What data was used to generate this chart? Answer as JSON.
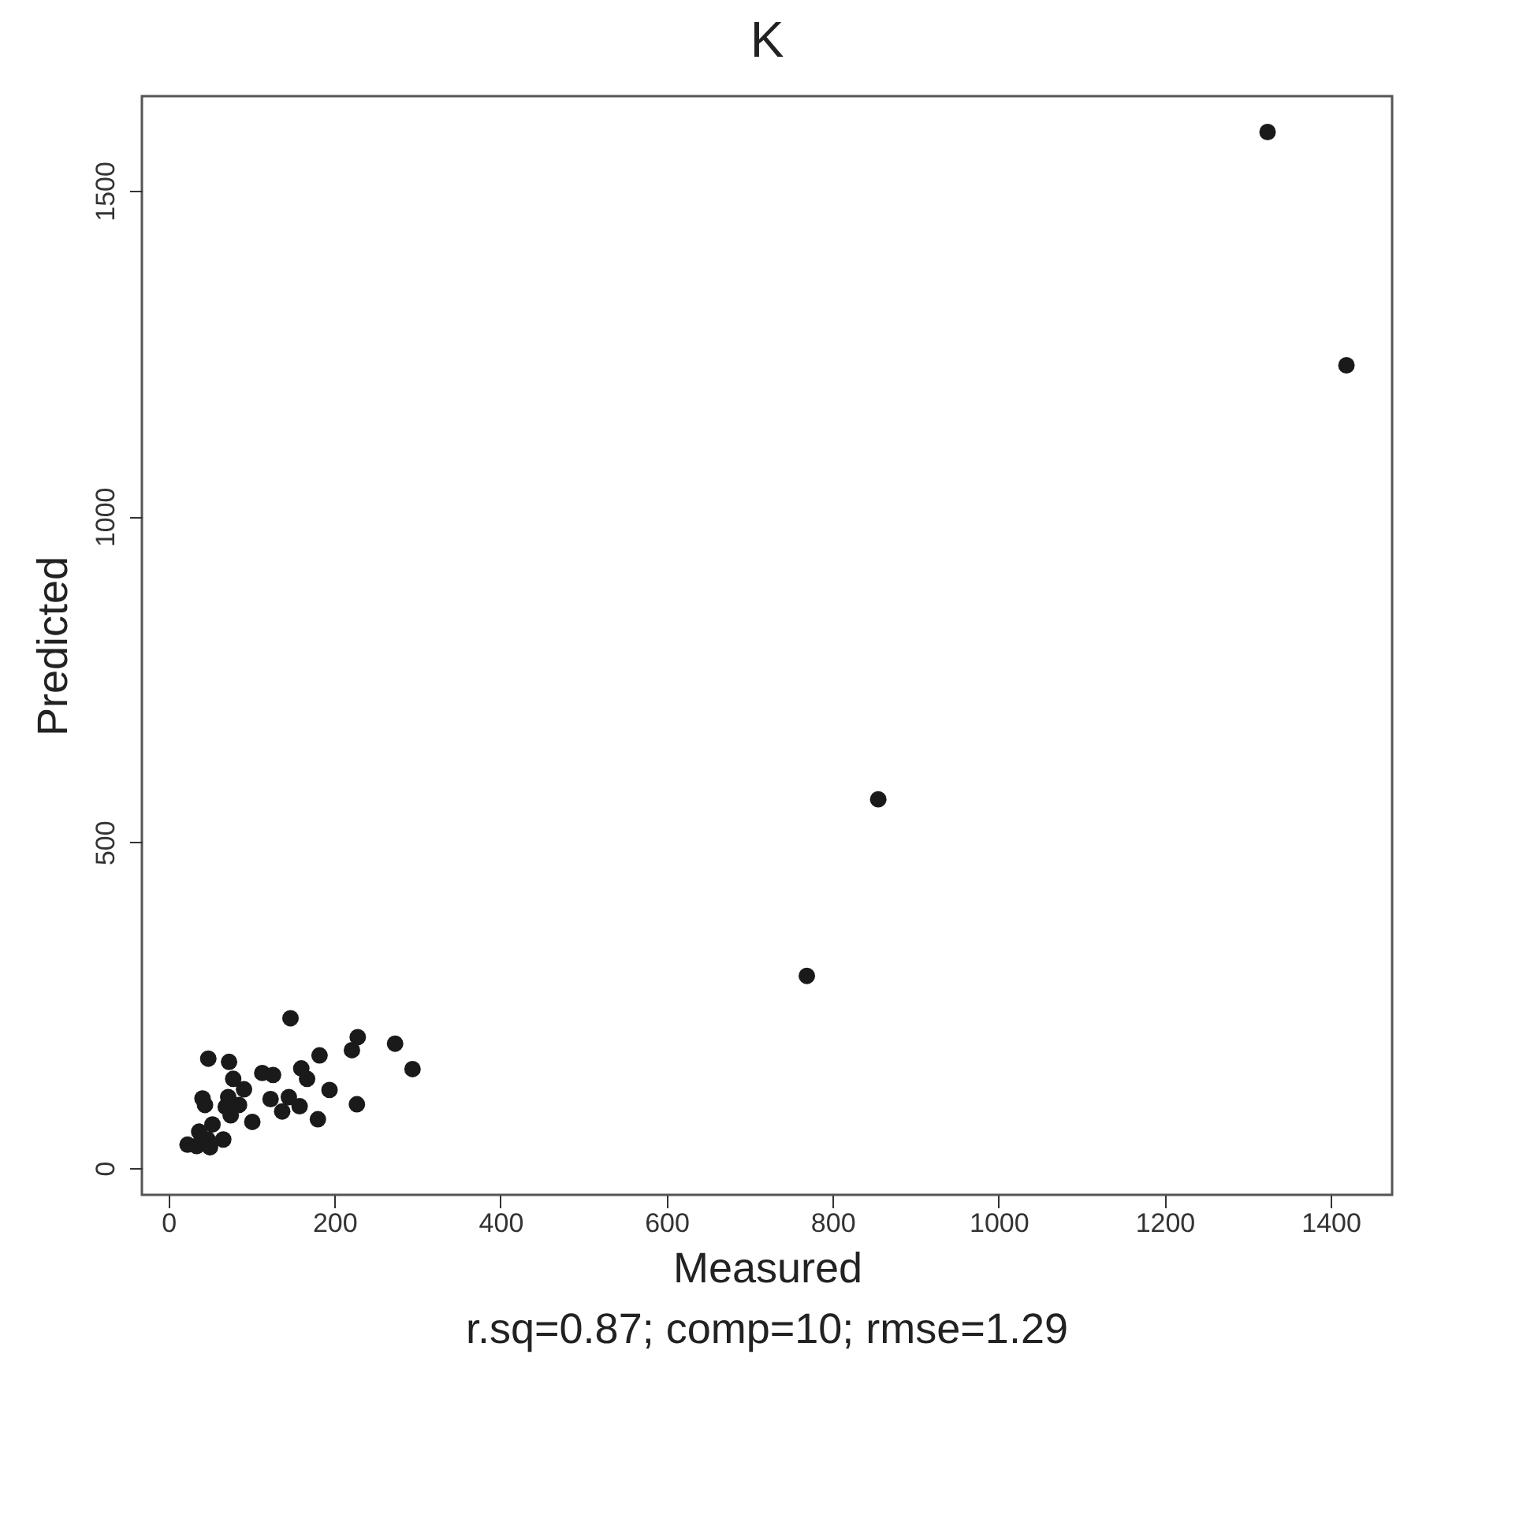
{
  "chart_data": {
    "type": "scatter",
    "title": "K",
    "xlabel": "Measured",
    "ylabel": "Predicted",
    "annotations": [
      "r.sq=0.87; comp=10; rmse=1.29"
    ],
    "x": [
      147,
      48,
      73,
      228,
      221,
      273,
      294,
      182,
      160,
      167,
      113,
      126,
      194,
      227,
      180,
      158,
      137,
      123,
      145,
      101,
      78,
      91,
      72,
      41,
      44,
      85,
      75,
      53,
      37,
      23,
      34,
      50,
      66,
      47,
      69,
      1324,
      1419,
      855,
      769
    ],
    "values": [
      230,
      168,
      163,
      201,
      181,
      191,
      152,
      173,
      153,
      137,
      146,
      143,
      120,
      98,
      75,
      95,
      87,
      106,
      109,
      71,
      137,
      121,
      109,
      107,
      97,
      97,
      81,
      67,
      56,
      36,
      34,
      32,
      44,
      44,
      94,
      1590,
      1232,
      566,
      295
    ],
    "color": "#1a1a1a",
    "marker": "circle",
    "grid": false,
    "xlim": [
      -32,
      1474
    ],
    "ylim": [
      -41,
      1645
    ],
    "xticks": [
      0,
      200,
      400,
      600,
      800,
      1000,
      1200,
      1400
    ],
    "yticks": [
      0,
      500,
      1000,
      1500
    ]
  }
}
